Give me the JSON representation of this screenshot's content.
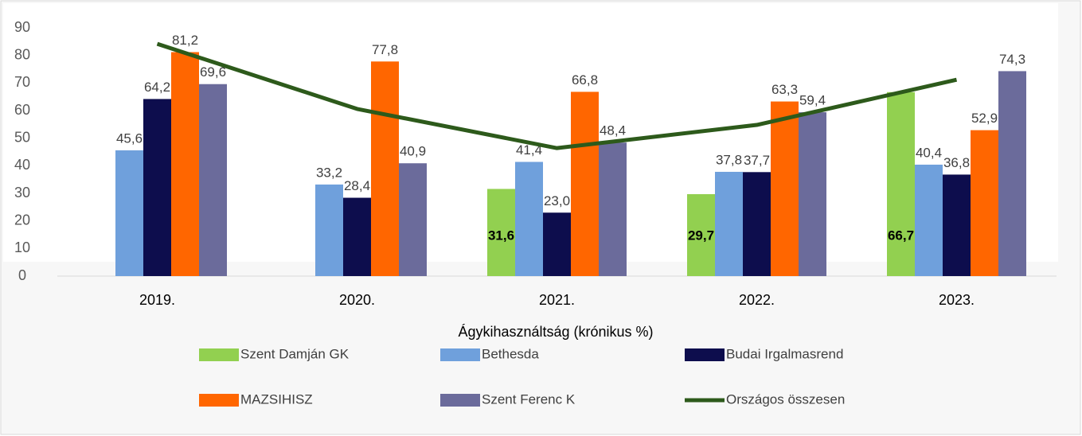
{
  "chart_data": {
    "type": "bar",
    "xlabel": "Ágykihasználtság (krónikus %)",
    "categories": [
      "2019.",
      "2020.",
      "2021.",
      "2022.",
      "2023."
    ],
    "ylim": [
      0,
      90
    ],
    "yticks": [
      0,
      10,
      20,
      30,
      40,
      50,
      60,
      70,
      80,
      90
    ],
    "grid": false,
    "legend": "bottom",
    "series": [
      {
        "name": "Szent Damján GK",
        "color": "#92d050",
        "values": [
          null,
          null,
          31.6,
          29.7,
          66.7
        ],
        "value_labels": [
          null,
          null,
          "31,6",
          "29,7",
          "66,7"
        ]
      },
      {
        "name": "Bethesda",
        "color": "#6fa0dc",
        "values": [
          45.6,
          33.2,
          41.4,
          37.8,
          40.4
        ],
        "value_labels": [
          "45,6",
          "33,2",
          "41,4",
          "37,8",
          "40,4"
        ]
      },
      {
        "name": "Budai Irgalmasrend",
        "color": "#0d0d4d",
        "values": [
          64.2,
          28.4,
          23.0,
          37.7,
          36.8
        ],
        "value_labels": [
          "64,2",
          "28,4",
          "23,0",
          "37,7",
          "36,8"
        ]
      },
      {
        "name": "MAZSIHISZ",
        "color": "#ff6600",
        "values": [
          81.2,
          77.8,
          66.8,
          63.3,
          52.9
        ],
        "value_labels": [
          "81,2",
          "77,8",
          "66,8",
          "63,3",
          "52,9"
        ]
      },
      {
        "name": "Szent Ferenc K",
        "color": "#6b6b9b",
        "values": [
          69.6,
          40.9,
          48.4,
          59.4,
          74.3
        ],
        "value_labels": [
          "69,6",
          "40,9",
          "48,4",
          "59,4",
          "74,3"
        ]
      },
      {
        "name": "Országos összesen",
        "type": "line",
        "color": "#2d5a1b",
        "values": [
          84.2,
          60.6,
          46.4,
          54.8,
          71.2
        ]
      }
    ]
  }
}
